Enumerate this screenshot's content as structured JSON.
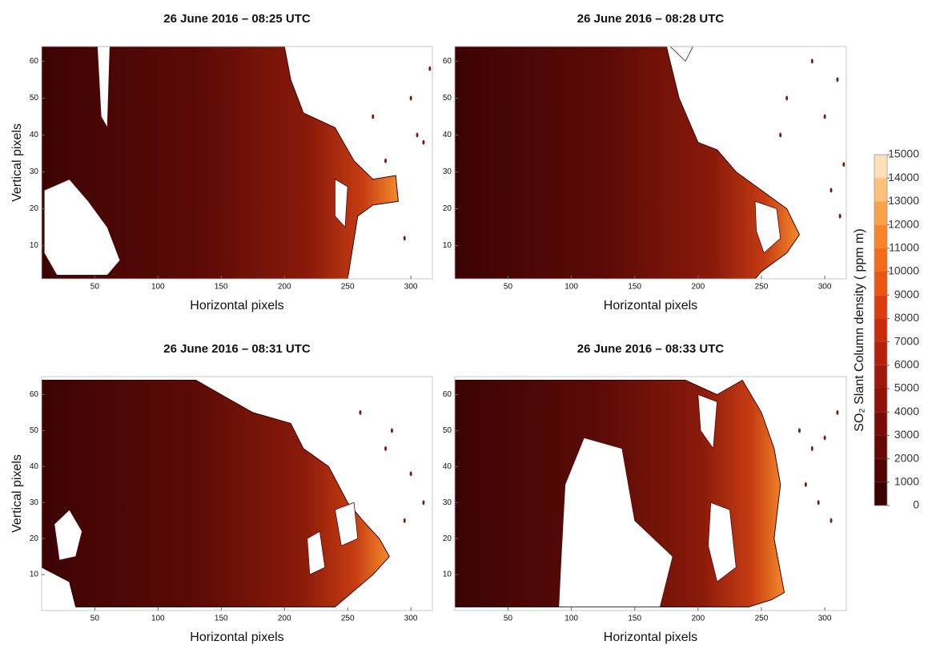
{
  "chart_data": [
    {
      "type": "heatmap",
      "title": "26 June 2016 – 08:25 UTC",
      "x_label": "Horizontal pixels",
      "y_label": "Vertical pixels",
      "xlim": [
        8,
        317
      ],
      "ylim": [
        1,
        64
      ],
      "xticks": [
        50,
        100,
        150,
        200,
        250,
        300
      ],
      "yticks": [
        10,
        20,
        30,
        40,
        50,
        60
      ]
    },
    {
      "type": "heatmap",
      "title": "26 June 2016 – 08:28 UTC",
      "x_label": "Horizontal pixels",
      "xlim": [
        8,
        317
      ],
      "ylim": [
        1,
        64
      ],
      "xticks": [
        50,
        100,
        150,
        200,
        250,
        300
      ],
      "yticks": [
        10,
        20,
        30,
        40,
        50,
        60
      ]
    },
    {
      "type": "heatmap",
      "title": "26 June 2016 – 08:31 UTC",
      "x_label": "Horizontal pixels",
      "y_label": "Vertical pixels",
      "xlim": [
        8,
        317
      ],
      "ylim": [
        0,
        65
      ],
      "xticks": [
        50,
        100,
        150,
        200,
        250,
        300
      ],
      "yticks": [
        10,
        20,
        30,
        40,
        50,
        60
      ]
    },
    {
      "type": "heatmap",
      "title": "26 June 2016 – 08:33 UTC",
      "x_label": "Horizontal pixels",
      "xlim": [
        8,
        317
      ],
      "ylim": [
        0,
        65
      ],
      "xticks": [
        50,
        100,
        150,
        200,
        250,
        300
      ],
      "yticks": [
        10,
        20,
        30,
        40,
        50,
        60
      ]
    },
    {
      "type": "colorbar",
      "label": "SO₂ Slant Column density ( ppm m)",
      "ylim": [
        0,
        15000
      ],
      "yticks": [
        0,
        1000,
        2000,
        3000,
        4000,
        5000,
        6000,
        7000,
        8000,
        9000,
        10000,
        11000,
        12000,
        13000,
        14000,
        15000
      ],
      "colors": [
        "#3a0000",
        "#520403",
        "#650806",
        "#780c08",
        "#8c120a",
        "#a0180b",
        "#b5200c",
        "#c92c0d",
        "#dc3d0f",
        "#ea5512",
        "#f36c18",
        "#f88628",
        "#fba248",
        "#fdc07a",
        "#fee0b8"
      ]
    }
  ]
}
